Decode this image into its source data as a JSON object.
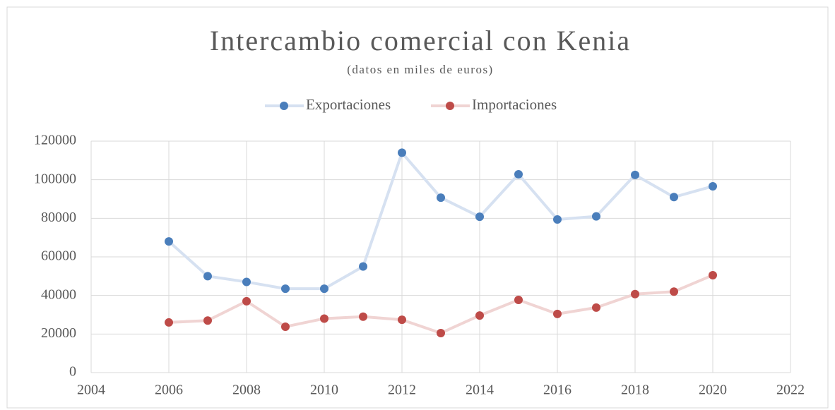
{
  "chart_data": {
    "type": "line",
    "title": "Intercambio comercial con Kenia",
    "subtitle": "(datos en miles de euros)",
    "x": [
      2006,
      2007,
      2008,
      2009,
      2010,
      2011,
      2012,
      2013,
      2014,
      2015,
      2016,
      2017,
      2018,
      2019,
      2020
    ],
    "series": [
      {
        "name": "Exportaciones",
        "color": "#4a7ebb",
        "line_color": "#d6e1f1",
        "values": [
          68000,
          50000,
          47000,
          43500,
          43500,
          55000,
          114000,
          90700,
          80800,
          102800,
          79400,
          81000,
          102500,
          91000,
          96600
        ]
      },
      {
        "name": "Importaciones",
        "color": "#be4b48",
        "line_color": "#f0d4d3",
        "values": [
          26000,
          27000,
          37000,
          23800,
          28000,
          29000,
          27400,
          20500,
          29600,
          37700,
          30400,
          33700,
          40700,
          42000,
          50500
        ]
      }
    ],
    "xlim": [
      2004,
      2022
    ],
    "xticks": [
      2004,
      2006,
      2008,
      2010,
      2012,
      2014,
      2016,
      2018,
      2020,
      2022
    ],
    "ylim": [
      0,
      120000
    ],
    "yticks": [
      0,
      20000,
      40000,
      60000,
      80000,
      100000,
      120000
    ],
    "grid": true,
    "legend": "top"
  }
}
